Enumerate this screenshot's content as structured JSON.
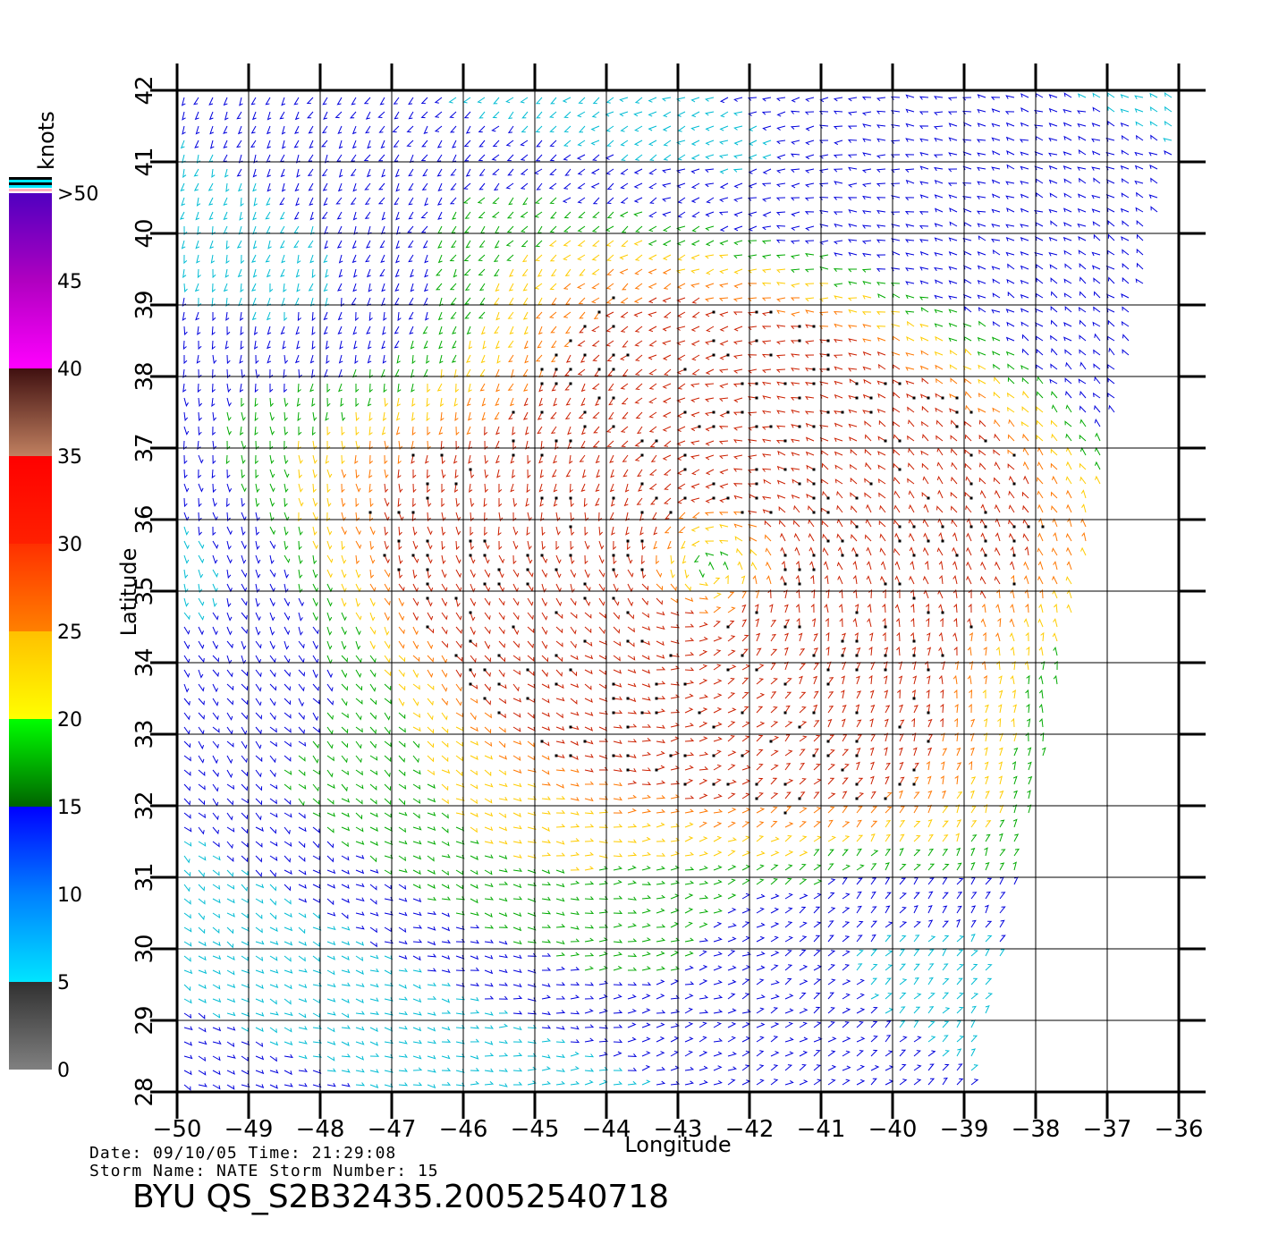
{
  "map": {
    "lon_range": [
      -50,
      -36
    ],
    "lat_range": [
      28,
      42
    ],
    "lon_ticks": [
      "−50",
      "−49",
      "−48",
      "−47",
      "−46",
      "−45",
      "−44",
      "−43",
      "−42",
      "−41",
      "−40",
      "−39",
      "−38",
      "−37",
      "−36"
    ],
    "lat_ticks": [
      "28",
      "29",
      "30",
      "31",
      "32",
      "33",
      "34",
      "35",
      "36",
      "37",
      "38",
      "39",
      "40",
      "41",
      "42"
    ],
    "xlabel": "Longitude",
    "ylabel": "Latitude",
    "grid": true,
    "field": "wind vectors",
    "storm_center": {
      "lon": -42.6,
      "lat": 35.3
    },
    "swath_east_edge": {
      "lat_low": 28,
      "lon_at_low": -38.9,
      "lat_high": 42,
      "lon_at_high": -35.9
    }
  },
  "colorbar": {
    "title": "knots",
    "labels": [
      ">50",
      "45",
      "40",
      "35",
      "30",
      "25",
      "20",
      "15",
      "10",
      "5",
      "0"
    ],
    "stops": [
      {
        "speed": 0,
        "color": "#808080"
      },
      {
        "speed": 5,
        "color": "#303030"
      },
      {
        "speed": 5,
        "color": "#00e5ff"
      },
      {
        "speed": 10,
        "color": "#0080ff"
      },
      {
        "speed": 15,
        "color": "#0000ff"
      },
      {
        "speed": 15,
        "color": "#006400"
      },
      {
        "speed": 20,
        "color": "#00ff00"
      },
      {
        "speed": 20,
        "color": "#ffff00"
      },
      {
        "speed": 25,
        "color": "#ffc000"
      },
      {
        "speed": 25,
        "color": "#ff8000"
      },
      {
        "speed": 30,
        "color": "#ff3000"
      },
      {
        "speed": 30,
        "color": "#ff2000"
      },
      {
        "speed": 35,
        "color": "#ff0000"
      },
      {
        "speed": 35,
        "color": "#c08060"
      },
      {
        "speed": 40,
        "color": "#401010"
      },
      {
        "speed": 40,
        "color": "#ff00ff"
      },
      {
        "speed": 45,
        "color": "#b000c0"
      },
      {
        "speed": 50,
        "color": "#5000c0"
      }
    ],
    "speed_colors": {
      "calm": "#606060",
      "light": "#00bcd4",
      "moderate": "#0000dd",
      "fresh": "#00aa00",
      "strong": "#ffcc00",
      "gale": "#ff7700",
      "storm": "#cc2000"
    }
  },
  "footer": {
    "date_line": "Date: 09/10/05   Time: 21:29:08",
    "storm_line": "Storm Name: NATE   Storm Number: 15",
    "product": "BYU QS_S2B32435.20052540718"
  }
}
